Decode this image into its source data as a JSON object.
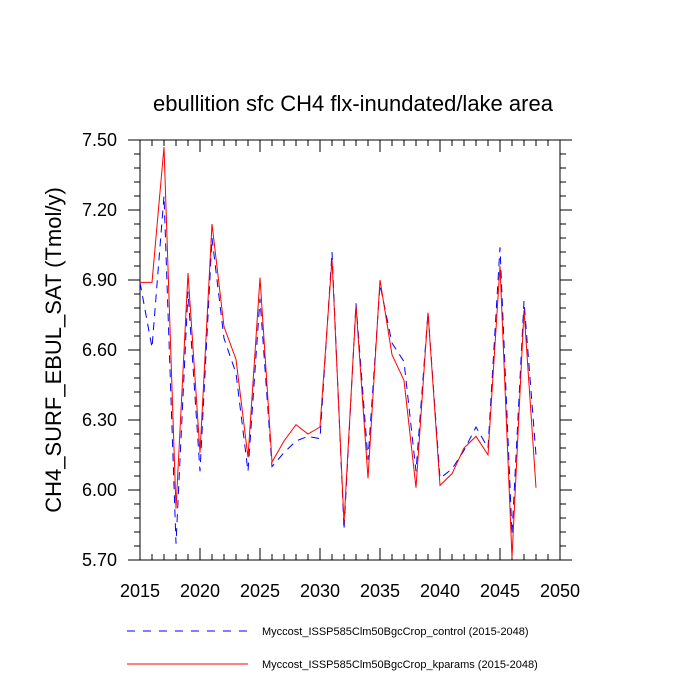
{
  "chart_data": {
    "type": "line",
    "title": "ebullition sfc CH4 flx-inundated/lake area",
    "xlabel": "",
    "ylabel": "CH4_SURF_EBUL_SAT  (Tmol/y)",
    "xlim": [
      2015,
      2050
    ],
    "ylim": [
      5.7,
      7.5
    ],
    "xticks": [
      2015,
      2020,
      2025,
      2030,
      2035,
      2040,
      2045,
      2050
    ],
    "xtick_labels": [
      "2015",
      "2020",
      "2025",
      "2030",
      "2035",
      "2040",
      "2045",
      "2050"
    ],
    "yticks": [
      5.7,
      6.0,
      6.3,
      6.6,
      6.9,
      7.2,
      7.5
    ],
    "ytick_labels": [
      "5.70",
      "6.00",
      "6.30",
      "6.60",
      "6.90",
      "7.20",
      "7.50"
    ],
    "x": [
      2015,
      2016,
      2017,
      2018,
      2019,
      2020,
      2021,
      2022,
      2023,
      2024,
      2025,
      2026,
      2027,
      2028,
      2029,
      2030,
      2031,
      2032,
      2033,
      2034,
      2035,
      2036,
      2037,
      2038,
      2039,
      2040,
      2041,
      2042,
      2043,
      2044,
      2045,
      2046,
      2047,
      2048
    ],
    "series": [
      {
        "name": "Myccost_ISSP585Clm50BgcCrop_control (2015-2048)",
        "color": "#0000ff",
        "style": "dashed",
        "values": [
          6.89,
          6.61,
          7.26,
          5.77,
          6.85,
          6.08,
          7.08,
          6.65,
          6.5,
          6.08,
          6.82,
          6.1,
          6.16,
          6.21,
          6.23,
          6.22,
          7.02,
          5.83,
          6.8,
          6.13,
          6.88,
          6.63,
          6.55,
          6.08,
          6.76,
          6.05,
          6.09,
          6.17,
          6.27,
          6.18,
          7.04,
          5.81,
          6.81,
          6.15
        ]
      },
      {
        "name": "Myccost_ISSP585Clm50BgcCrop_kparams (2015-2048)",
        "color": "#ff0000",
        "style": "solid",
        "values": [
          6.89,
          6.89,
          7.47,
          5.92,
          6.93,
          6.16,
          7.14,
          6.7,
          6.56,
          6.14,
          6.91,
          6.12,
          6.21,
          6.28,
          6.24,
          6.27,
          6.99,
          5.86,
          6.79,
          6.05,
          6.9,
          6.58,
          6.47,
          6.01,
          6.76,
          6.02,
          6.07,
          6.18,
          6.23,
          6.15,
          6.96,
          5.71,
          6.77,
          6.01
        ]
      }
    ]
  }
}
